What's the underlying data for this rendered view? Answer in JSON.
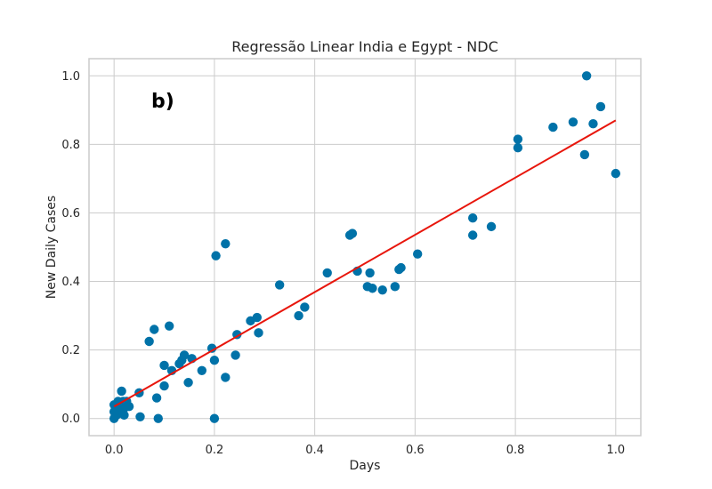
{
  "chart_data": {
    "type": "scatter",
    "title": "Regressão Linear India e Egypt - NDC",
    "xlabel": "Days",
    "ylabel": "New Daily Cases",
    "annotation": "b)",
    "xlim": [
      -0.05,
      1.05
    ],
    "ylim": [
      -0.05,
      1.05
    ],
    "x_ticks": [
      0.0,
      0.2,
      0.4,
      0.6,
      0.8,
      1.0
    ],
    "y_ticks": [
      0.0,
      0.2,
      0.4,
      0.6,
      0.8,
      1.0
    ],
    "x_tick_labels": [
      "0.0",
      "0.2",
      "0.4",
      "0.6",
      "0.8",
      "1.0"
    ],
    "y_tick_labels": [
      "0.0",
      "0.2",
      "0.4",
      "0.6",
      "0.8",
      "1.0"
    ],
    "grid": true,
    "colors": {
      "points": "#0072a8",
      "line": "#e8160c"
    },
    "series": [
      {
        "type": "scatter",
        "points": [
          [
            0.0,
            0.0
          ],
          [
            0.0,
            0.02
          ],
          [
            0.0,
            0.04
          ],
          [
            0.005,
            0.01
          ],
          [
            0.008,
            0.05
          ],
          [
            0.01,
            0.03
          ],
          [
            0.012,
            0.02
          ],
          [
            0.015,
            0.08
          ],
          [
            0.018,
            0.05
          ],
          [
            0.02,
            0.03
          ],
          [
            0.02,
            0.01
          ],
          [
            0.025,
            0.05
          ],
          [
            0.03,
            0.035
          ],
          [
            0.05,
            0.075
          ],
          [
            0.052,
            0.005
          ],
          [
            0.07,
            0.225
          ],
          [
            0.08,
            0.26
          ],
          [
            0.085,
            0.06
          ],
          [
            0.088,
            0.0
          ],
          [
            0.1,
            0.155
          ],
          [
            0.1,
            0.095
          ],
          [
            0.11,
            0.27
          ],
          [
            0.115,
            0.14
          ],
          [
            0.13,
            0.16
          ],
          [
            0.135,
            0.17
          ],
          [
            0.14,
            0.185
          ],
          [
            0.148,
            0.105
          ],
          [
            0.155,
            0.175
          ],
          [
            0.175,
            0.14
          ],
          [
            0.195,
            0.205
          ],
          [
            0.2,
            0.17
          ],
          [
            0.2,
            0.0
          ],
          [
            0.203,
            0.475
          ],
          [
            0.222,
            0.12
          ],
          [
            0.222,
            0.51
          ],
          [
            0.242,
            0.185
          ],
          [
            0.245,
            0.245
          ],
          [
            0.272,
            0.285
          ],
          [
            0.285,
            0.295
          ],
          [
            0.288,
            0.25
          ],
          [
            0.33,
            0.39
          ],
          [
            0.368,
            0.3
          ],
          [
            0.38,
            0.325
          ],
          [
            0.425,
            0.425
          ],
          [
            0.47,
            0.535
          ],
          [
            0.475,
            0.54
          ],
          [
            0.485,
            0.43
          ],
          [
            0.505,
            0.385
          ],
          [
            0.51,
            0.425
          ],
          [
            0.515,
            0.38
          ],
          [
            0.535,
            0.375
          ],
          [
            0.56,
            0.385
          ],
          [
            0.568,
            0.435
          ],
          [
            0.572,
            0.44
          ],
          [
            0.605,
            0.48
          ],
          [
            0.715,
            0.585
          ],
          [
            0.715,
            0.535
          ],
          [
            0.752,
            0.56
          ],
          [
            0.805,
            0.815
          ],
          [
            0.805,
            0.79
          ],
          [
            0.875,
            0.85
          ],
          [
            0.915,
            0.865
          ],
          [
            0.938,
            0.77
          ],
          [
            0.942,
            1.0
          ],
          [
            0.955,
            0.86
          ],
          [
            0.97,
            0.91
          ],
          [
            1.0,
            0.715
          ]
        ]
      },
      {
        "type": "line",
        "x": [
          0.0,
          1.0
        ],
        "y": [
          0.035,
          0.87
        ]
      }
    ]
  }
}
